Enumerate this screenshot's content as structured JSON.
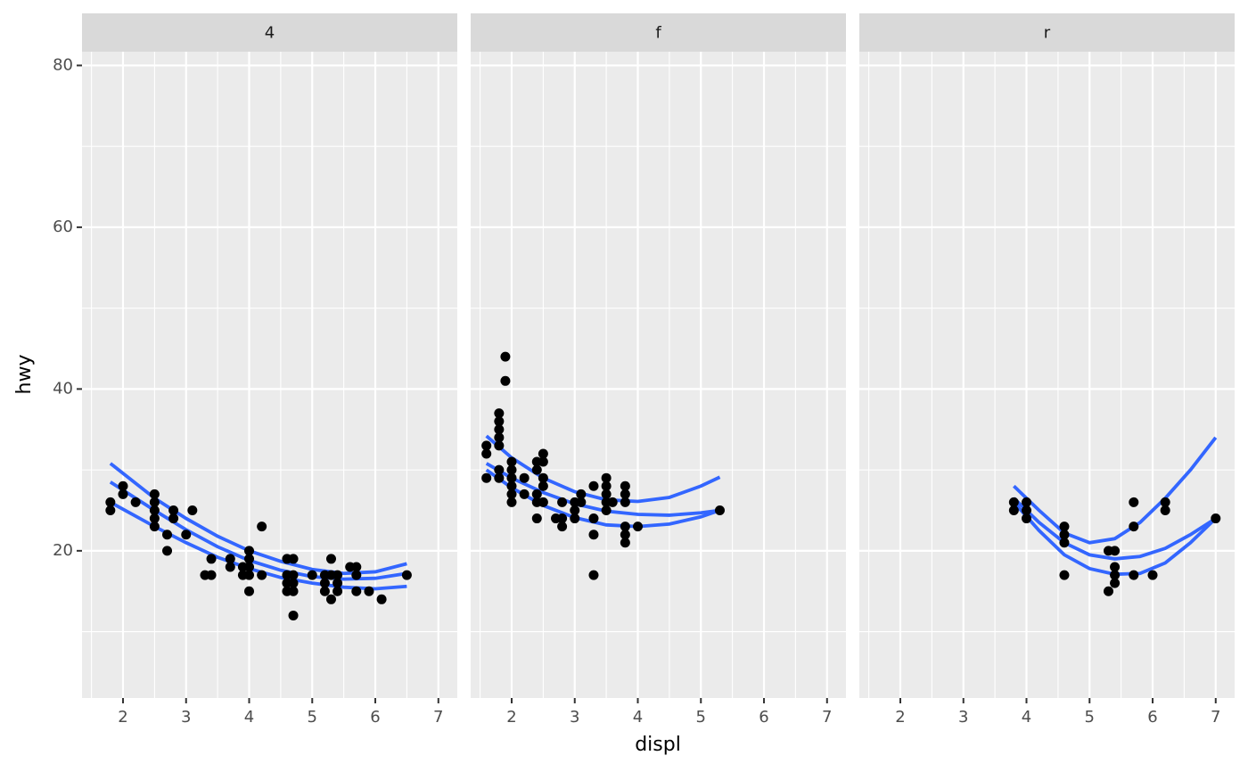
{
  "x_label": "displ",
  "y_label": "hwy",
  "chart_data": [
    {
      "type": "scatter",
      "title": "4",
      "color": "#000000",
      "x": [
        1.8,
        1.8,
        2.0,
        2.0,
        2.2,
        2.5,
        2.5,
        2.5,
        2.5,
        2.5,
        2.7,
        2.7,
        2.8,
        2.8,
        3.0,
        3.1,
        3.3,
        3.4,
        3.4,
        3.7,
        3.7,
        3.9,
        3.9,
        4.0,
        4.0,
        4.0,
        4.0,
        4.0,
        4.2,
        4.2,
        4.6,
        4.6,
        4.6,
        4.6,
        4.7,
        4.7,
        4.7,
        4.7,
        4.7,
        5.0,
        5.2,
        5.2,
        5.2,
        5.3,
        5.3,
        5.3,
        5.4,
        5.4,
        5.4,
        5.6,
        5.7,
        5.7,
        5.7,
        5.9,
        6.1,
        6.5
      ],
      "values": [
        26,
        25,
        28,
        27,
        26,
        27,
        26,
        25,
        24,
        23,
        22,
        20,
        25,
        24,
        22,
        25,
        17,
        17,
        19,
        19,
        18,
        17,
        18,
        20,
        19,
        18,
        17,
        15,
        23,
        17,
        19,
        17,
        16,
        15,
        19,
        17,
        16,
        15,
        12,
        17,
        17,
        16,
        15,
        19,
        17,
        14,
        17,
        16,
        15,
        18,
        18,
        17,
        15,
        15,
        14,
        17
      ],
      "lines": [
        {
          "color": "#3366ff",
          "x": [
            1.8,
            2.5,
            3.0,
            3.5,
            4.0,
            4.5,
            5.0,
            5.5,
            6.0,
            6.5
          ],
          "values": [
            30.8,
            26.5,
            24.0,
            21.8,
            20.0,
            18.7,
            17.7,
            17.2,
            17.4,
            18.4
          ]
        },
        {
          "color": "#3366ff",
          "x": [
            1.8,
            2.5,
            3.0,
            3.5,
            4.0,
            4.5,
            5.0,
            5.5,
            6.0,
            6.5
          ],
          "values": [
            28.5,
            25.0,
            22.6,
            20.5,
            18.8,
            17.6,
            16.8,
            16.5,
            16.6,
            17.2
          ]
        },
        {
          "color": "#3366ff",
          "x": [
            1.8,
            2.5,
            3.0,
            3.5,
            4.0,
            4.5,
            5.0,
            5.5,
            6.0,
            6.5
          ],
          "values": [
            26.0,
            23.0,
            21.0,
            19.2,
            17.8,
            16.7,
            16.0,
            15.5,
            15.3,
            15.6
          ]
        }
      ],
      "xlim": [
        1.35,
        7.3
      ],
      "ylim": [
        1.8,
        81.7
      ],
      "xticks": [
        2,
        3,
        4,
        5,
        6,
        7
      ],
      "yticks": [
        20,
        40,
        60,
        80
      ],
      "minor_xticks": [
        1.5,
        2.5,
        3.5,
        4.5,
        5.5,
        6.5
      ],
      "minor_yticks": [
        10,
        30,
        50,
        70
      ],
      "grid": true
    },
    {
      "type": "scatter",
      "title": "f",
      "color": "#000000",
      "x": [
        1.6,
        1.6,
        1.6,
        1.8,
        1.8,
        1.8,
        1.8,
        1.8,
        1.8,
        1.8,
        1.9,
        1.9,
        2.0,
        2.0,
        2.0,
        2.0,
        2.0,
        2.0,
        2.2,
        2.2,
        2.4,
        2.4,
        2.4,
        2.4,
        2.4,
        2.5,
        2.5,
        2.5,
        2.5,
        2.5,
        2.7,
        2.8,
        2.8,
        2.8,
        3.0,
        3.0,
        3.0,
        3.1,
        3.1,
        3.3,
        3.3,
        3.3,
        3.3,
        3.5,
        3.5,
        3.5,
        3.5,
        3.5,
        3.6,
        3.8,
        3.8,
        3.8,
        3.8,
        3.8,
        3.8,
        4.0,
        5.3
      ],
      "values": [
        33,
        32,
        29,
        37,
        36,
        35,
        34,
        33,
        30,
        29,
        44,
        41,
        31,
        30,
        29,
        28,
        27,
        26,
        29,
        27,
        31,
        30,
        27,
        26,
        24,
        32,
        31,
        29,
        28,
        26,
        24,
        26,
        24,
        23,
        26,
        25,
        24,
        27,
        26,
        28,
        24,
        22,
        17,
        29,
        28,
        27,
        26,
        25,
        26,
        28,
        27,
        26,
        23,
        22,
        21,
        23,
        25
      ],
      "lines": [
        {
          "color": "#3366ff",
          "x": [
            1.6,
            2.0,
            2.5,
            3.0,
            3.5,
            4.0,
            4.5,
            5.0,
            5.3
          ],
          "values": [
            34.2,
            31.5,
            29.0,
            27.3,
            26.3,
            26.1,
            26.6,
            28.0,
            29.1
          ]
        },
        {
          "color": "#3366ff",
          "x": [
            1.6,
            2.0,
            2.5,
            3.0,
            3.5,
            4.0,
            4.5,
            5.0,
            5.3
          ],
          "values": [
            30.8,
            29.0,
            27.2,
            25.8,
            24.9,
            24.5,
            24.4,
            24.7,
            25.0
          ]
        },
        {
          "color": "#3366ff",
          "x": [
            1.6,
            2.0,
            2.5,
            3.0,
            3.5,
            4.0,
            4.5,
            5.0,
            5.3
          ],
          "values": [
            30.0,
            27.8,
            25.6,
            24.1,
            23.2,
            23.0,
            23.3,
            24.2,
            25.0
          ]
        }
      ],
      "xlim": [
        1.35,
        7.3
      ],
      "ylim": [
        1.8,
        81.7
      ],
      "xticks": [
        2,
        3,
        4,
        5,
        6,
        7
      ],
      "yticks": [
        20,
        40,
        60,
        80
      ],
      "minor_xticks": [
        1.5,
        2.5,
        3.5,
        4.5,
        5.5,
        6.5
      ],
      "minor_yticks": [
        10,
        30,
        50,
        70
      ],
      "grid": true
    },
    {
      "type": "scatter",
      "title": "r",
      "color": "#000000",
      "x": [
        3.8,
        3.8,
        4.0,
        4.0,
        4.0,
        4.6,
        4.6,
        4.6,
        4.6,
        5.3,
        5.3,
        5.4,
        5.4,
        5.4,
        5.4,
        5.7,
        5.7,
        5.7,
        6.0,
        6.2,
        6.2,
        7.0
      ],
      "values": [
        26,
        25,
        26,
        25,
        24,
        23,
        22,
        21,
        17,
        20,
        15,
        20,
        18,
        17,
        16,
        26,
        23,
        17,
        17,
        26,
        25,
        24
      ],
      "lines": [
        {
          "color": "#3366ff",
          "x": [
            3.8,
            4.2,
            4.6,
            5.0,
            5.4,
            5.8,
            6.2,
            6.6,
            7.0
          ],
          "values": [
            28.0,
            25.0,
            22.2,
            21.0,
            21.5,
            23.5,
            26.5,
            30.0,
            34.0
          ]
        },
        {
          "color": "#3366ff",
          "x": [
            3.8,
            4.2,
            4.6,
            5.0,
            5.4,
            5.8,
            6.2,
            6.6,
            7.0
          ],
          "values": [
            26.5,
            23.5,
            21.0,
            19.5,
            19.0,
            19.3,
            20.3,
            22.0,
            24.0
          ]
        },
        {
          "color": "#3366ff",
          "x": [
            3.8,
            4.2,
            4.6,
            5.0,
            5.4,
            5.8,
            6.2,
            6.6,
            7.0
          ],
          "values": [
            26.0,
            22.5,
            19.5,
            17.8,
            17.1,
            17.2,
            18.5,
            21.0,
            24.0
          ]
        }
      ],
      "xlim": [
        1.35,
        7.3
      ],
      "ylim": [
        1.8,
        81.7
      ],
      "xticks": [
        2,
        3,
        4,
        5,
        6,
        7
      ],
      "yticks": [
        20,
        40,
        60,
        80
      ],
      "minor_xticks": [
        1.5,
        2.5,
        3.5,
        4.5,
        5.5,
        6.5
      ],
      "minor_yticks": [
        10,
        30,
        50,
        70
      ],
      "grid": true
    }
  ]
}
